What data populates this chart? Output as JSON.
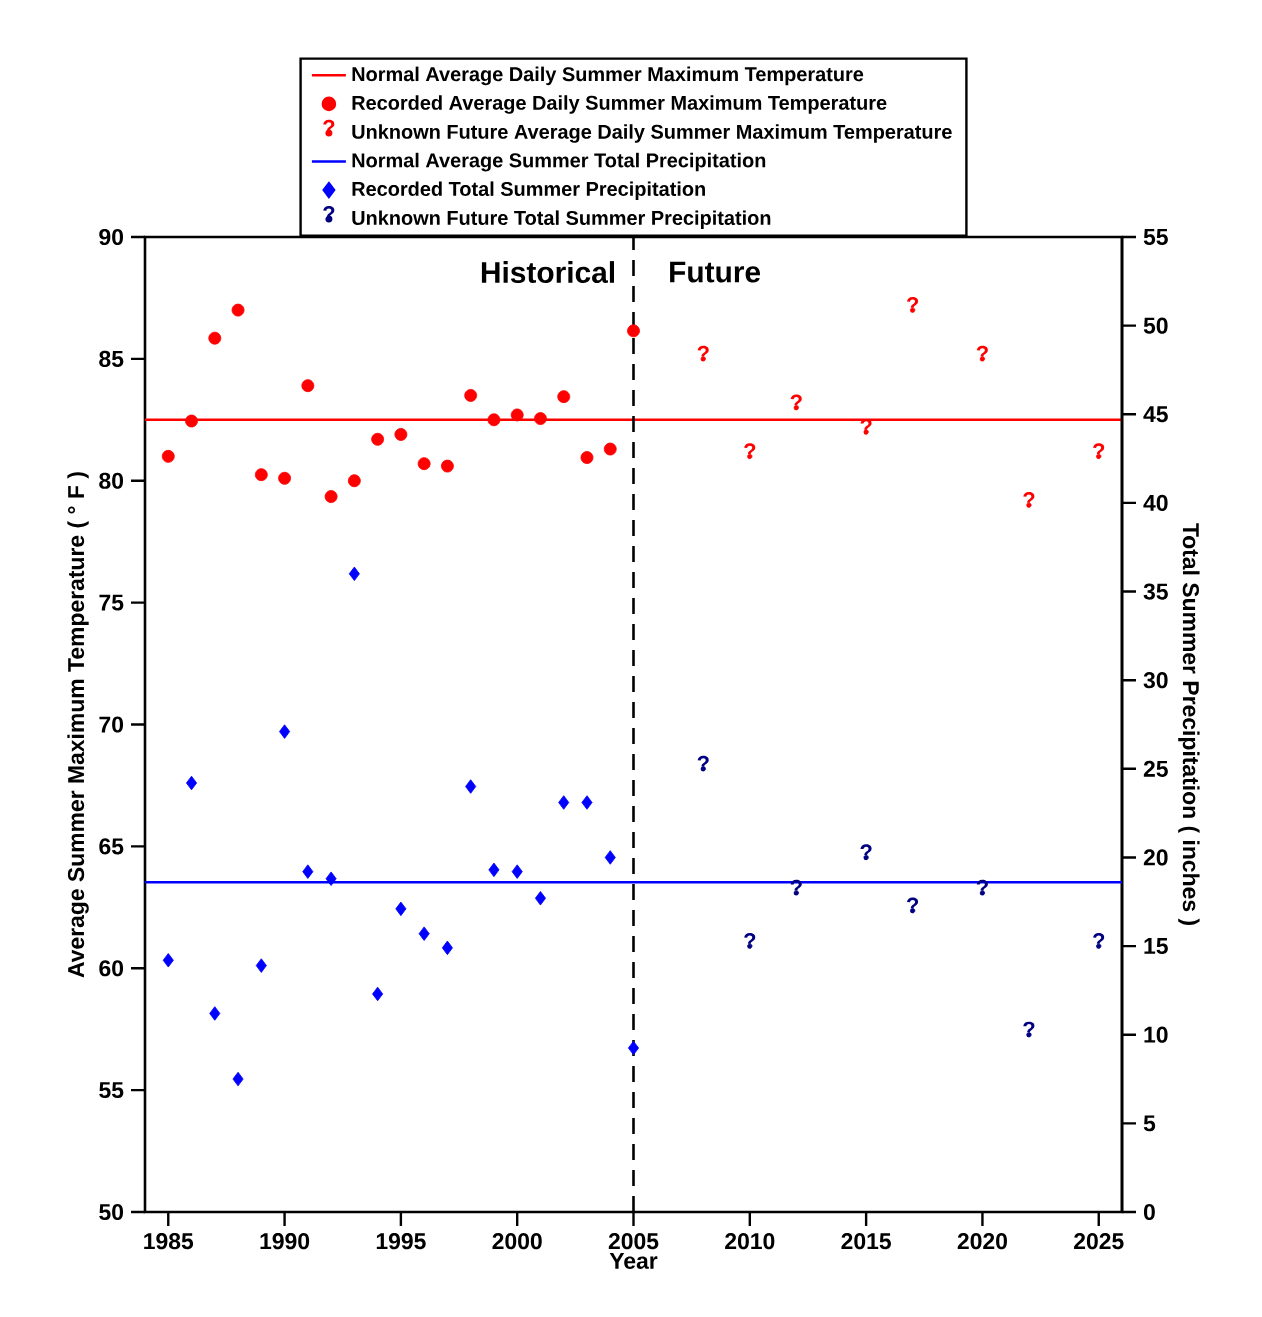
{
  "chart_data": {
    "type": "scatter",
    "xlabel": "Year",
    "ylabel": "Average Summer Maximum Temperature ( ° F )",
    "y2label": "Total Summer Precipitation ( inches )",
    "x": [
      1985,
      1986,
      1987,
      1988,
      1989,
      1990,
      1991,
      1992,
      1993,
      1994,
      1995,
      1996,
      1997,
      1998,
      1999,
      2000,
      2001,
      2002,
      2003,
      2004,
      2005
    ],
    "series": [
      {
        "name": "Normal Average Daily Summer Maximum Temperature",
        "type": "line",
        "color": "#ff0000",
        "x": [
          1984,
          2026
        ],
        "values": [
          82.5,
          82.5
        ]
      },
      {
        "name": "Recorded Average Daily Summer Maximum Temperature",
        "marker": "circle",
        "color": "#ff0000",
        "values": [
          81.0,
          82.45,
          85.85,
          87.0,
          80.25,
          80.1,
          83.9,
          79.35,
          80.0,
          81.7,
          81.9,
          80.7,
          80.6,
          83.5,
          82.5,
          82.7,
          82.55,
          83.45,
          80.95,
          81.3,
          86.15
        ]
      },
      {
        "name": "Unknown Future Average Daily Summer Maximum Temperature",
        "marker": "circle",
        "color": "#ff0000",
        "x": [
          2008,
          2010,
          2012,
          2015,
          2017,
          2020,
          2022,
          2025
        ],
        "values": [
          85.0,
          81.0,
          83.0,
          82.0,
          87.0,
          85.0,
          79.0,
          81.0
        ],
        "value_labels": [
          "?",
          "?",
          "?",
          "?",
          "?",
          "?",
          "?",
          "?"
        ]
      },
      {
        "name": "Normal Average Summer Total Precipitation",
        "type": "line",
        "axis": "y2",
        "color": "#0000ff",
        "x": [
          1984,
          2026
        ],
        "values": [
          18.6,
          18.6
        ]
      },
      {
        "name": "Recorded Total Summer Precipitation",
        "marker": "diamond",
        "axis": "y2",
        "color": "#0000ff",
        "values": [
          14.2,
          24.2,
          11.2,
          7.5,
          13.9,
          27.1,
          19.2,
          18.8,
          36.0,
          12.3,
          17.1,
          15.7,
          14.9,
          24.0,
          19.3,
          19.2,
          17.7,
          23.1,
          23.1,
          20.0,
          9.25
        ]
      },
      {
        "name": "Unknown Future Total Summer Precipitation",
        "marker": "circle",
        "axis": "y2",
        "color": "#000080",
        "x": [
          2008,
          2010,
          2012,
          2015,
          2017,
          2020,
          2022,
          2025
        ],
        "values": [
          25.0,
          15.0,
          18.0,
          20.0,
          17.0,
          18.0,
          10.0,
          15.0
        ],
        "value_labels": [
          "?",
          "?",
          "?",
          "?",
          "?",
          "?",
          "?",
          "?"
        ]
      }
    ],
    "xlim": [
      1984,
      2026
    ],
    "xticks": [
      1985,
      1990,
      1995,
      2000,
      2005,
      2010,
      2015,
      2020,
      2025
    ],
    "ylim": [
      50,
      90
    ],
    "yticks": [
      50,
      55,
      60,
      65,
      70,
      75,
      80,
      85,
      90
    ],
    "y2lim": [
      0,
      55
    ],
    "y2ticks": [
      0,
      5,
      10,
      15,
      20,
      25,
      30,
      35,
      40,
      45,
      50,
      55
    ],
    "ref_lines": [
      {
        "axis": "x",
        "value": 2005,
        "color": "#000000",
        "line_style": "dashed"
      }
    ],
    "annotations": [
      "Historical",
      "Future"
    ],
    "legend": "top"
  }
}
